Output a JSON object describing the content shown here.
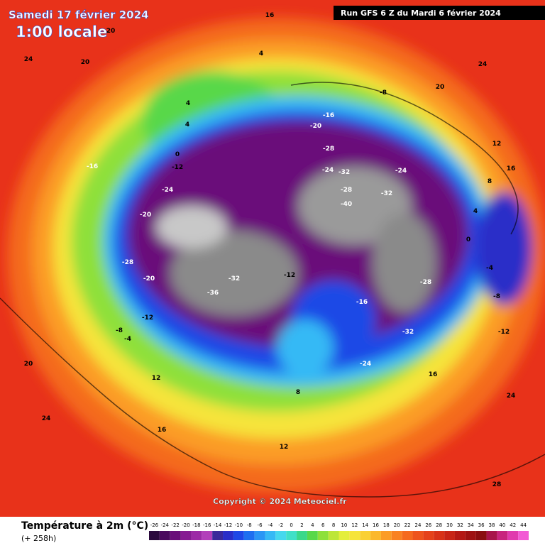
{
  "header": {
    "date": "Samedi 17 février 2024",
    "time": "1:00 locale",
    "run": "Run GFS 6 Z du Mardi 6 février 2024"
  },
  "footer": {
    "title": "Température à 2m (°C)",
    "lead": "(+ 258h)",
    "copyright": "Copyright © 2024 Meteociel.fr"
  },
  "colorbar": {
    "ticks": [
      -26,
      -24,
      -22,
      -20,
      -18,
      -16,
      -14,
      -12,
      -10,
      -8,
      -6,
      -4,
      -2,
      0,
      2,
      4,
      6,
      8,
      10,
      12,
      14,
      16,
      18,
      20,
      22,
      24,
      26,
      28,
      30,
      32,
      34,
      36,
      38,
      40,
      42,
      44
    ],
    "colors": [
      "#2b0a3d",
      "#4a0a5e",
      "#6a0f7a",
      "#861c92",
      "#9c2aa6",
      "#b23fba",
      "#3b2a9a",
      "#2a2ec8",
      "#1f48e6",
      "#1e6ff0",
      "#2a96f5",
      "#36b9f5",
      "#46d8ee",
      "#40e0c8",
      "#3ad88a",
      "#58d84a",
      "#8ee03a",
      "#bde638",
      "#e4ee3c",
      "#f6e43a",
      "#fad034",
      "#fbb82c",
      "#fb9c26",
      "#f98222",
      "#f56a1e",
      "#ee541c",
      "#e5421a",
      "#d83218",
      "#c82416",
      "#b41814",
      "#9e1212",
      "#8a0e10",
      "#a8144a",
      "#c8247e",
      "#e03aae",
      "#f25ad4"
    ]
  },
  "map_labels": [
    16,
    20,
    24,
    20,
    4,
    4,
    -8,
    -16,
    -20,
    -28,
    -24,
    -32,
    -28,
    -40,
    -24,
    -32,
    -24,
    -20,
    -16,
    -12,
    -28,
    -20,
    -36,
    -32,
    -12,
    -8,
    -4,
    0,
    4,
    8,
    12,
    16,
    20,
    24,
    -12,
    -16,
    -24,
    -32,
    -28,
    24,
    20,
    16,
    12,
    8,
    4,
    0,
    -4,
    -8,
    -12,
    24,
    28,
    16,
    12
  ]
}
